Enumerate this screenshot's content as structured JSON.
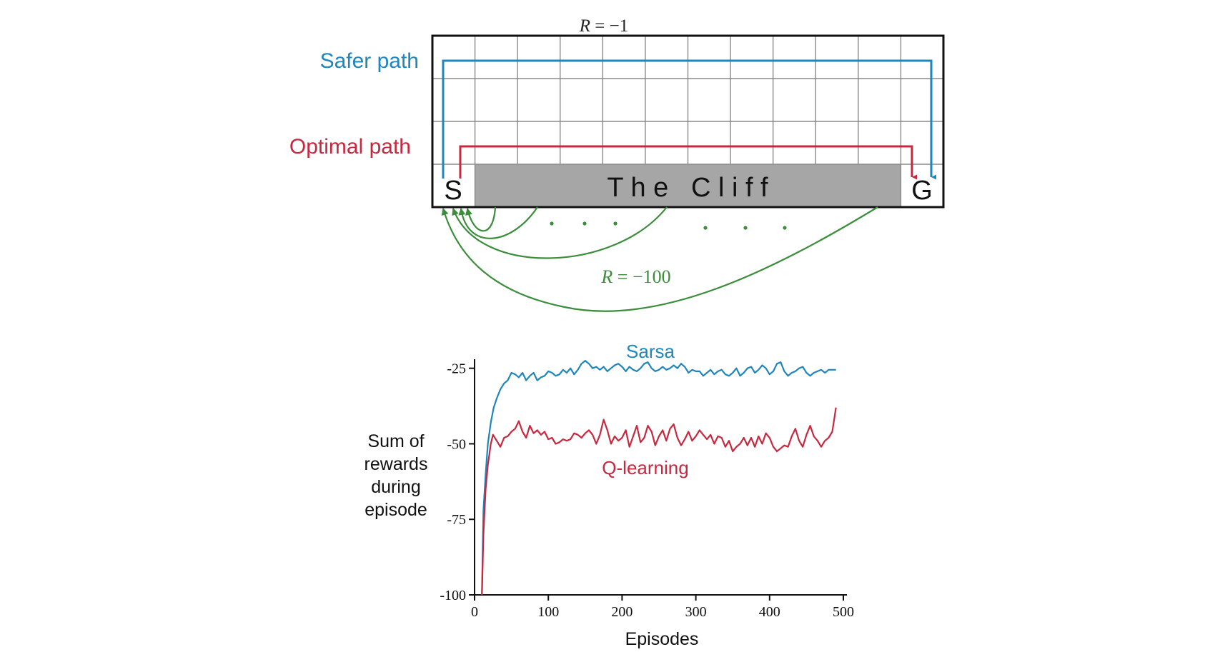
{
  "colors": {
    "blue": "#1f86bd",
    "red": "#c8283e",
    "green": "#3a8d3a",
    "cliff": "#a6a6a6",
    "grid": "#8a8a8a",
    "black": "#111111"
  },
  "gridworld": {
    "reward_step_prefix": "R",
    "reward_step_value": " = −1",
    "safer_path_label": "Safer path",
    "optimal_path_label": "Optimal path",
    "start_label": "S",
    "goal_label": "G",
    "cliff_label": "T h e   C l i f f",
    "cliff_reward_prefix": "R",
    "cliff_reward_value": " = −100",
    "columns": 12,
    "rows": 4
  },
  "chart_data": {
    "type": "line",
    "title": "",
    "xlabel": "Episodes",
    "ylabel_lines": [
      "Sum of",
      "rewards",
      "during",
      "episode"
    ],
    "xlim": [
      0,
      500
    ],
    "ylim": [
      -100,
      -20
    ],
    "x_ticks": [
      0,
      100,
      200,
      300,
      400,
      500
    ],
    "y_ticks": [
      -25,
      -50,
      -75,
      -100
    ],
    "grid": false,
    "series": [
      {
        "name": "Sarsa",
        "color": "#1f86bd",
        "x": [
          10,
          12,
          15,
          18,
          22,
          26,
          30,
          35,
          40,
          45,
          50,
          55,
          60,
          65,
          70,
          75,
          80,
          85,
          90,
          95,
          100,
          105,
          110,
          115,
          120,
          125,
          130,
          135,
          140,
          145,
          150,
          155,
          160,
          165,
          170,
          175,
          180,
          185,
          190,
          195,
          200,
          205,
          210,
          215,
          220,
          225,
          230,
          235,
          240,
          245,
          250,
          255,
          260,
          265,
          270,
          275,
          280,
          285,
          290,
          295,
          300,
          305,
          310,
          315,
          320,
          325,
          330,
          335,
          340,
          345,
          350,
          355,
          360,
          365,
          370,
          375,
          380,
          385,
          390,
          395,
          400,
          405,
          410,
          415,
          420,
          425,
          430,
          435,
          440,
          445,
          450,
          455,
          460,
          465,
          470,
          475,
          480,
          485,
          490
        ],
        "values": [
          -100,
          -72,
          -60,
          -50,
          -43,
          -38,
          -35,
          -32,
          -30,
          -29,
          -26.5,
          -27,
          -28,
          -26.5,
          -29,
          -27.5,
          -26.5,
          -29,
          -28,
          -27.5,
          -26,
          -26.5,
          -27.5,
          -27,
          -25.5,
          -26.5,
          -25,
          -27,
          -25.5,
          -23.5,
          -22.5,
          -23.5,
          -25,
          -24.5,
          -25.5,
          -24.5,
          -26,
          -25,
          -24,
          -23.5,
          -24.5,
          -26,
          -24.5,
          -25.5,
          -26,
          -25,
          -23.5,
          -23,
          -25,
          -26,
          -25.5,
          -24.5,
          -25.5,
          -25,
          -24,
          -25,
          -23.5,
          -24.5,
          -26.5,
          -25.5,
          -26,
          -26,
          -27.5,
          -26.5,
          -25.5,
          -27,
          -26,
          -25.5,
          -27,
          -27.5,
          -26.5,
          -25,
          -27.5,
          -26.5,
          -25,
          -24.5,
          -26.5,
          -25.5,
          -24,
          -25,
          -27,
          -26,
          -23.5,
          -23,
          -26,
          -27.5,
          -26.5,
          -26,
          -25,
          -24.5,
          -26.5,
          -27.5,
          -26.5,
          -26,
          -25.5,
          -26.5,
          -25.5,
          -25.5,
          -25.5
        ]
      },
      {
        "name": "Q-learning",
        "color": "#c8283e",
        "x": [
          10,
          12,
          15,
          18,
          22,
          25,
          30,
          35,
          40,
          45,
          50,
          55,
          60,
          65,
          70,
          75,
          80,
          85,
          90,
          95,
          100,
          105,
          110,
          115,
          120,
          125,
          130,
          135,
          140,
          145,
          150,
          155,
          160,
          165,
          170,
          175,
          180,
          185,
          190,
          195,
          200,
          205,
          210,
          215,
          220,
          225,
          230,
          235,
          240,
          245,
          250,
          255,
          260,
          265,
          270,
          275,
          280,
          285,
          290,
          295,
          300,
          305,
          310,
          315,
          320,
          325,
          330,
          335,
          340,
          345,
          350,
          355,
          360,
          365,
          370,
          375,
          380,
          385,
          390,
          395,
          400,
          405,
          410,
          415,
          420,
          425,
          430,
          435,
          440,
          445,
          450,
          455,
          460,
          465,
          470,
          475,
          480,
          485,
          490
        ],
        "values": [
          -100,
          -80,
          -65,
          -57,
          -50,
          -47,
          -49,
          -51,
          -48,
          -47.5,
          -46,
          -45,
          -42.5,
          -46,
          -48,
          -44,
          -46.5,
          -45.5,
          -47,
          -46,
          -48.5,
          -48,
          -50,
          -49.5,
          -48.5,
          -49,
          -48.5,
          -46.5,
          -47,
          -48,
          -46.5,
          -45.5,
          -47,
          -50,
          -47,
          -42,
          -45.5,
          -50,
          -47.5,
          -49,
          -48,
          -45.5,
          -51,
          -47.5,
          -44,
          -49.5,
          -48,
          -44,
          -46,
          -50.5,
          -47.5,
          -45.5,
          -49,
          -45,
          -43.5,
          -48,
          -50.5,
          -48.5,
          -46,
          -49,
          -47.5,
          -45.5,
          -47,
          -48.5,
          -47,
          -50,
          -47.5,
          -48,
          -51,
          -49,
          -52.5,
          -51,
          -50,
          -48,
          -50.5,
          -48,
          -51,
          -47.5,
          -50,
          -46.5,
          -48,
          -51,
          -52.5,
          -51.5,
          -50.5,
          -51,
          -47.5,
          -45,
          -49,
          -51,
          -47,
          -44,
          -47.5,
          -49,
          -51,
          -49,
          -48,
          -46,
          -38
        ]
      }
    ]
  }
}
